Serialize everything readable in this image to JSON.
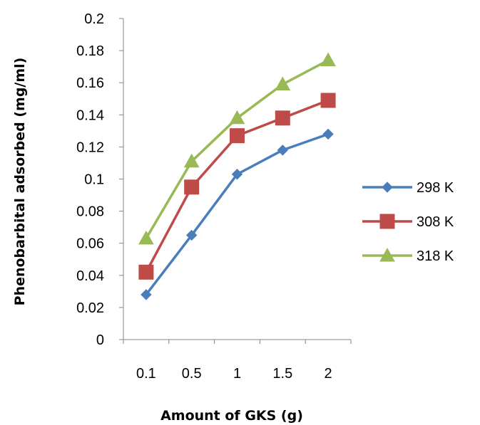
{
  "chart_data": {
    "type": "line",
    "categories": [
      "0.1",
      "0.5",
      "1",
      "1.5",
      "2"
    ],
    "xlabel": "Amount of GKS (g)",
    "ylabel": "Phenobarbital adsorbed (mg/ml)",
    "ylim": [
      0,
      0.2
    ],
    "yticks": [
      "0",
      "0.02",
      "0.04",
      "0.06",
      "0.08",
      "0.1",
      "0.12",
      "0.14",
      "0.16",
      "0.18",
      "0.2"
    ],
    "grid": false,
    "legend_position": "right",
    "series": [
      {
        "name": "298 K",
        "marker": "diamond",
        "color": "#4a7ebb",
        "values": [
          0.028,
          0.065,
          0.103,
          0.118,
          0.128
        ]
      },
      {
        "name": "308 K",
        "marker": "square",
        "color": "#be4b48",
        "values": [
          0.042,
          0.095,
          0.127,
          0.138,
          0.149
        ]
      },
      {
        "name": "318 K",
        "marker": "triangle",
        "color": "#98b954",
        "values": [
          0.063,
          0.111,
          0.138,
          0.159,
          0.174
        ]
      }
    ]
  }
}
